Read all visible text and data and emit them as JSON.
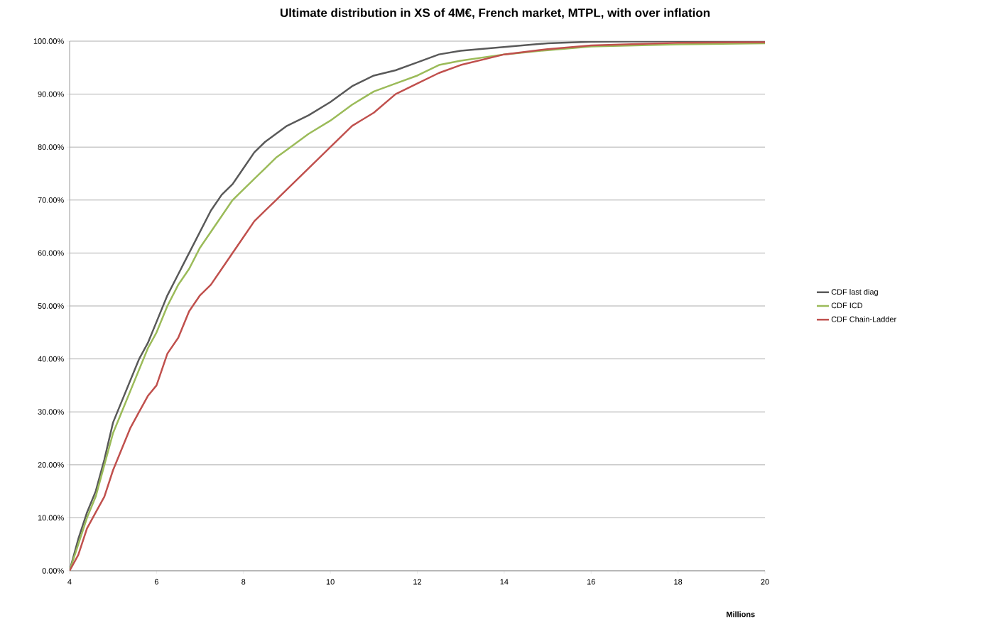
{
  "chart_data": {
    "type": "line",
    "title": "Ultimate distribution in XS of 4M€, French market, MTPL, with over inflation",
    "xlabel": "Millions",
    "xlim": [
      4,
      20
    ],
    "xticks": [
      4,
      6,
      8,
      10,
      12,
      14,
      16,
      18,
      20
    ],
    "ylim": [
      0,
      100
    ],
    "yticks": [
      {
        "value": 0,
        "label": "0.00%"
      },
      {
        "value": 10,
        "label": "10.00%"
      },
      {
        "value": 20,
        "label": "20.00%"
      },
      {
        "value": 30,
        "label": "30.00%"
      },
      {
        "value": 40,
        "label": "40.00%"
      },
      {
        "value": 50,
        "label": "50.00%"
      },
      {
        "value": 60,
        "label": "60.00%"
      },
      {
        "value": 70,
        "label": "70.00%"
      },
      {
        "value": 80,
        "label": "80.00%"
      },
      {
        "value": 90,
        "label": "90.00%"
      },
      {
        "value": 100,
        "label": "100.00%"
      }
    ],
    "grid": "y",
    "legend": "right",
    "x": [
      4,
      4.2,
      4.4,
      4.6,
      4.8,
      5,
      5.2,
      5.4,
      5.6,
      5.8,
      6,
      6.25,
      6.5,
      6.75,
      7,
      7.25,
      7.5,
      7.75,
      8,
      8.25,
      8.5,
      8.75,
      9,
      9.5,
      10,
      10.5,
      11,
      11.5,
      12,
      12.5,
      13,
      14,
      15,
      16,
      18,
      20
    ],
    "series": [
      {
        "name": "CDF last diag",
        "color": "#595959",
        "values": [
          0,
          6,
          11,
          15,
          21,
          28,
          32,
          36,
          40,
          43,
          47,
          52,
          56,
          60,
          64,
          68,
          71,
          73,
          76,
          79,
          81,
          82.5,
          84,
          86,
          88.5,
          91.5,
          93.5,
          94.5,
          96,
          97.5,
          98.2,
          98.9,
          99.6,
          99.9,
          100,
          100
        ]
      },
      {
        "name": "CDF ICD",
        "color": "#9bbb59",
        "values": [
          0,
          5,
          10,
          14,
          20,
          26,
          30,
          34,
          38,
          42,
          45,
          50,
          54,
          57,
          61,
          64,
          67,
          70,
          72,
          74,
          76,
          78,
          79.5,
          82.5,
          85,
          88,
          90.5,
          92,
          93.5,
          95.5,
          96.3,
          97.5,
          98.3,
          99,
          99.4,
          99.6
        ]
      },
      {
        "name": "CDF Chain-Ladder",
        "color": "#c0504d",
        "values": [
          0,
          3,
          8,
          11,
          14,
          19,
          23,
          27,
          30,
          33,
          35,
          41,
          44,
          49,
          52,
          54,
          57,
          60,
          63,
          66,
          68,
          70,
          72,
          76,
          80,
          84,
          86.5,
          90,
          92,
          94,
          95.5,
          97.5,
          98.5,
          99.2,
          99.7,
          99.8
        ]
      }
    ]
  }
}
